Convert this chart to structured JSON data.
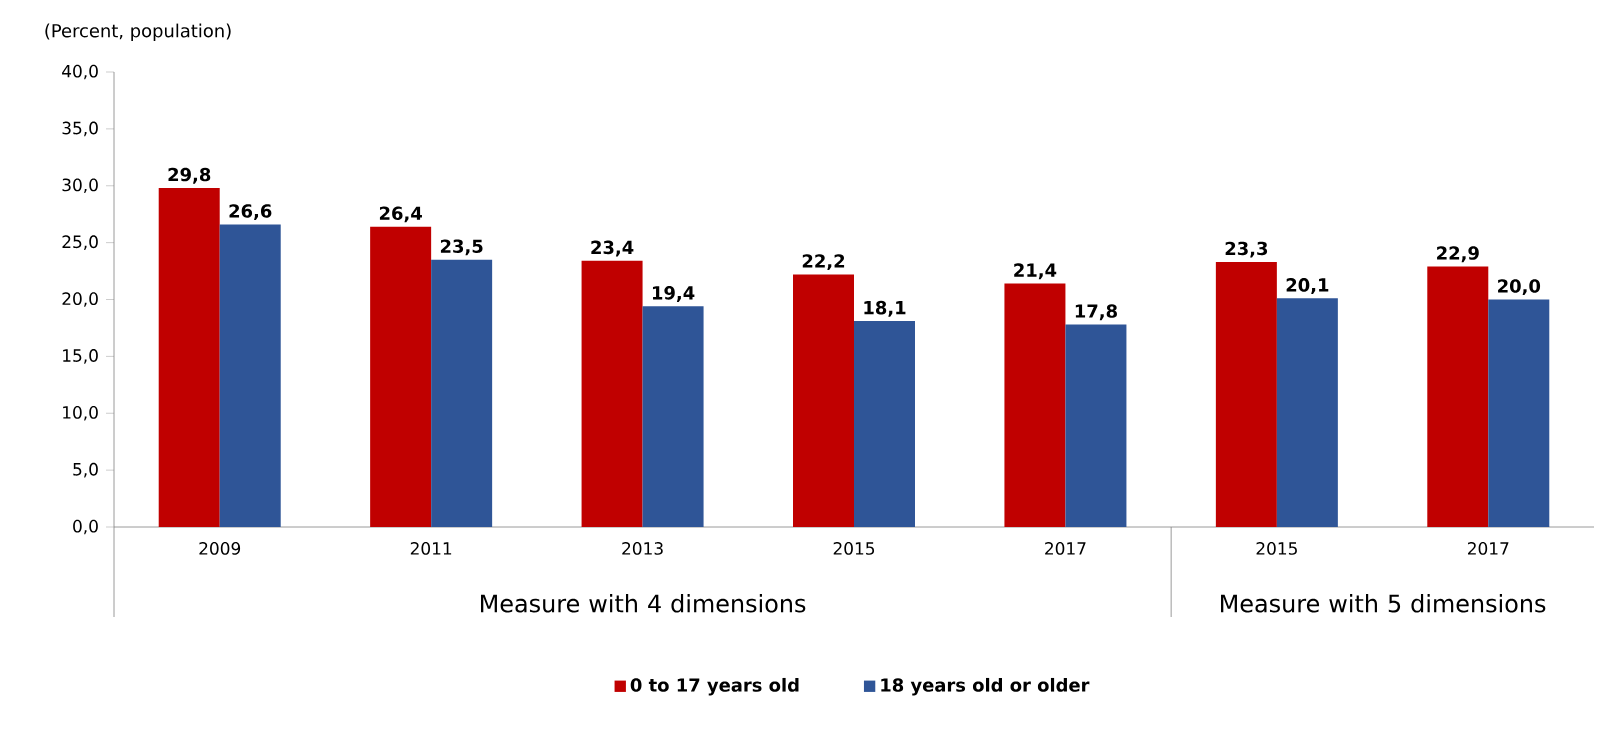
{
  "chart_data": {
    "type": "bar",
    "ylabel": "(Percent, population)",
    "categories": [
      "2009",
      "2011",
      "2013",
      "2015",
      "2017",
      "2015",
      "2017"
    ],
    "series": [
      {
        "name": "0 to 17 years old",
        "color": "#c00000",
        "values": [
          29.8,
          26.4,
          23.4,
          22.2,
          21.4,
          23.3,
          22.9
        ],
        "value_labels": [
          "29,8",
          "26,4",
          "23,4",
          "22,2",
          "21,4",
          "23,3",
          "22,9"
        ]
      },
      {
        "name": "18 years old or older",
        "color": "#2f5597",
        "values": [
          26.6,
          23.5,
          19.4,
          18.1,
          17.8,
          20.1,
          20.0
        ],
        "value_labels": [
          "26,6",
          "23,5",
          "19,4",
          "18,1",
          "17,8",
          "20,1",
          "20,0"
        ]
      }
    ],
    "ylim": [
      0,
      40
    ],
    "yticks": [
      {
        "value": 0,
        "label": "0,0"
      },
      {
        "value": 5,
        "label": "5,0"
      },
      {
        "value": 10,
        "label": "10,0"
      },
      {
        "value": 15,
        "label": "15,0"
      },
      {
        "value": 20,
        "label": "20,0"
      },
      {
        "value": 25,
        "label": "25,0"
      },
      {
        "value": 30,
        "label": "30,0"
      },
      {
        "value": 35,
        "label": "35,0"
      },
      {
        "value": 40,
        "label": "40,0"
      }
    ],
    "legend": "bottom",
    "grid": false,
    "annotations": [
      "Measure with 4 dimensions",
      "Measure with 5 dimensions"
    ]
  }
}
